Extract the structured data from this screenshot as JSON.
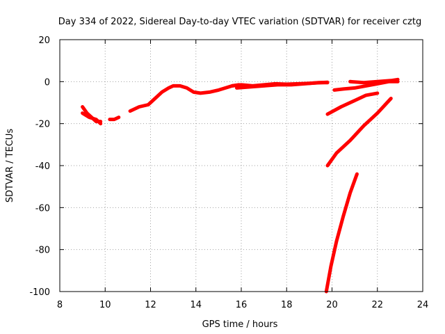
{
  "chart_data": {
    "type": "scatter",
    "title": "Day 334 of 2022, Sidereal Day-to-day VTEC variation (SDTVAR) for receiver cztg",
    "xlabel": "GPS time / hours",
    "ylabel": "SDTVAR / TECUs",
    "xlim": [
      8,
      24
    ],
    "ylim": [
      -100,
      20
    ],
    "xticks": [
      "8",
      "10",
      "12",
      "14",
      "16",
      "18",
      "20",
      "22",
      "24"
    ],
    "yticks": [
      "20",
      "0",
      "-20",
      "-40",
      "-60",
      "-80",
      "-100"
    ],
    "grid": true,
    "color": "#ff0000",
    "series": [
      {
        "x": [
          9.0,
          9.2,
          9.4,
          9.6,
          9.8
        ],
        "y": [
          -12,
          -15,
          -17,
          -19,
          -19
        ]
      },
      {
        "x": [
          9.0,
          9.3,
          9.6,
          9.8
        ],
        "y": [
          -15,
          -17,
          -18,
          -20
        ]
      },
      {
        "x": [
          10.2,
          10.4,
          10.6
        ],
        "y": [
          -18,
          -18,
          -17
        ]
      },
      {
        "x": [
          11.1,
          11.5,
          11.9,
          12.2,
          12.5,
          12.8,
          13.0,
          13.3,
          13.6,
          13.9,
          14.2,
          14.6,
          15.0,
          15.3,
          15.6,
          15.9
        ],
        "y": [
          -14,
          -12,
          -11,
          -8,
          -5,
          -3,
          -2,
          -2,
          -3,
          -5,
          -5.5,
          -5,
          -4,
          -3,
          -2,
          -1.5
        ]
      },
      {
        "x": [
          15.6,
          16.0,
          16.5,
          17.0,
          17.5,
          18.0,
          18.5,
          19.0,
          19.5,
          19.8
        ],
        "y": [
          -2,
          -1.5,
          -2,
          -1.5,
          -1,
          -1.2,
          -1,
          -0.8,
          -0.5,
          -0.3
        ]
      },
      {
        "x": [
          15.8,
          16.4,
          17.0,
          17.6,
          18.2,
          18.8,
          19.4,
          19.8
        ],
        "y": [
          -3,
          -2.5,
          -2,
          -1.5,
          -1.5,
          -1,
          -0.5,
          -0.5
        ]
      },
      {
        "x": [
          20.1,
          20.5,
          21.0,
          21.5,
          22.0,
          22.5,
          22.9
        ],
        "y": [
          -4,
          -3.5,
          -3,
          -2,
          -1,
          0,
          0
        ]
      },
      {
        "x": [
          20.8,
          21.4,
          22.0,
          22.6,
          22.9
        ],
        "y": [
          0,
          -0.5,
          0,
          0.5,
          1
        ]
      },
      {
        "x": [
          19.8,
          20.4,
          21.0,
          21.5,
          22.0
        ],
        "y": [
          -15.5,
          -12,
          -9,
          -6.5,
          -5.5
        ]
      },
      {
        "x": [
          19.8,
          20.2,
          20.8,
          21.4,
          22.0,
          22.6
        ],
        "y": [
          -40,
          -34,
          -28,
          -21,
          -15,
          -8
        ]
      },
      {
        "x": [
          19.75,
          19.95,
          20.2,
          20.5,
          20.8,
          21.1
        ],
        "y": [
          -100,
          -88,
          -76,
          -64,
          -53,
          -44
        ]
      }
    ]
  }
}
